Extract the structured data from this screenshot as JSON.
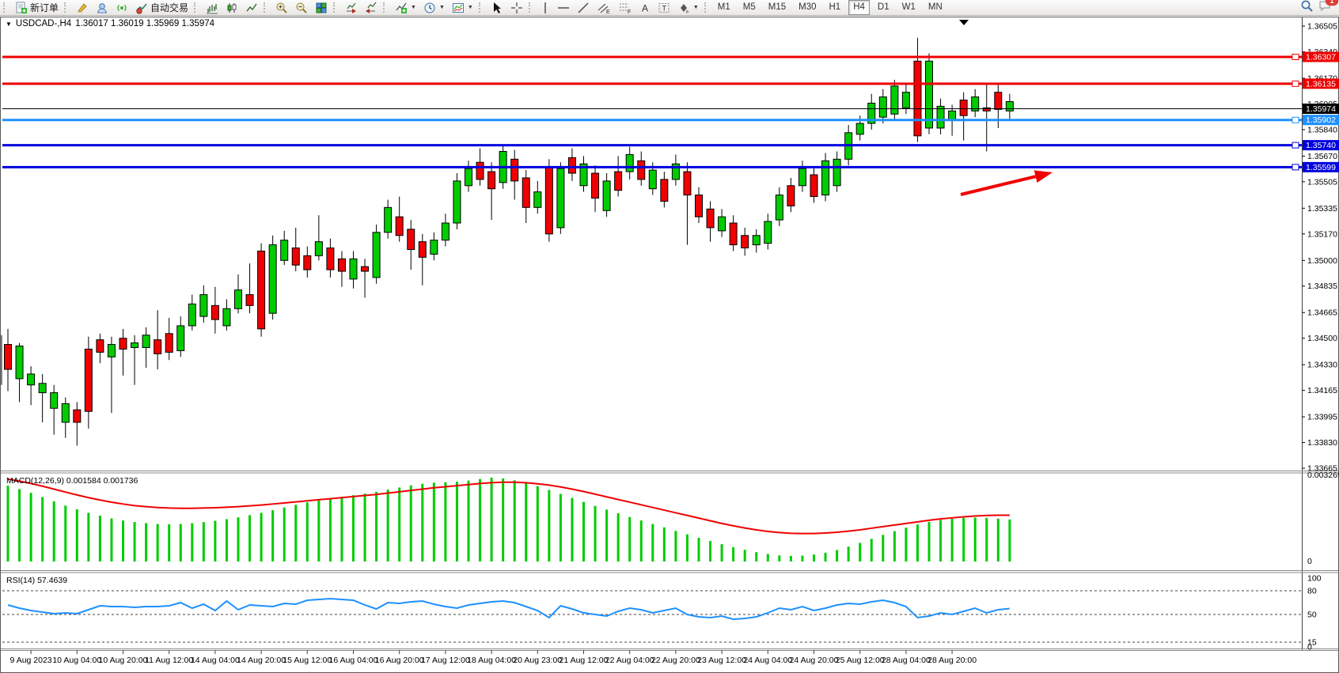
{
  "toolbar": {
    "new_order_label": "新订单",
    "autotrade_label": "自动交易",
    "timeframes": [
      "M1",
      "M5",
      "M15",
      "M30",
      "H1",
      "H4",
      "D1",
      "W1",
      "MN"
    ],
    "active_timeframe": "H4",
    "chat_badge": "1"
  },
  "window": {
    "title_symbol": "USDCAD-,H4",
    "title_ohlc": "1.36017 1.36019 1.35969 1.35974"
  },
  "chart_data": {
    "type": "candlestick",
    "symbol": "USDCAD",
    "period": "H4",
    "ohlc_display": {
      "open": "1.36017",
      "high": "1.36019",
      "low": "1.35969",
      "close": "1.35974"
    },
    "price_axis_ticks": [
      "1.36505",
      "1.36340",
      "1.36170",
      "1.36005",
      "1.35840",
      "1.35670",
      "1.35505",
      "1.35335",
      "1.35170",
      "1.35000",
      "1.34835",
      "1.34665",
      "1.34500",
      "1.34330",
      "1.34165",
      "1.33995",
      "1.33830",
      "1.33665"
    ],
    "price_levels": [
      {
        "label": "1.36307",
        "price": 1.36307,
        "color": "#ee0000",
        "notch": true,
        "width": 3
      },
      {
        "label": "1.36135",
        "price": 1.36135,
        "color": "#ee0000",
        "notch": true,
        "width": 3
      },
      {
        "label": "1.35974",
        "price": 1.35974,
        "color": "#000000",
        "notch": false,
        "width": 1
      },
      {
        "label": "1.35902",
        "price": 1.35902,
        "color": "#1e90ff",
        "notch": true,
        "width": 3
      },
      {
        "label": "1.35740",
        "price": 1.3574,
        "color": "#0000dd",
        "notch": true,
        "width": 3
      },
      {
        "label": "1.35599",
        "price": 1.35599,
        "color": "#0000dd",
        "notch": true,
        "width": 3
      }
    ],
    "date_labels": [
      "9 Aug 2023",
      "10 Aug 04:00",
      "10 Aug 20:00",
      "11 Aug 12:00",
      "14 Aug 04:00",
      "14 Aug 20:00",
      "15 Aug 12:00",
      "16 Aug 04:00",
      "16 Aug 20:00",
      "17 Aug 12:00",
      "18 Aug 04:00",
      "20 Aug 23:00",
      "21 Aug 12:00",
      "22 Aug 04:00",
      "22 Aug 20:00",
      "23 Aug 12:00",
      "24 Aug 04:00",
      "24 Aug 20:00",
      "25 Aug 12:00",
      "28 Aug 04:00",
      "28 Aug 20:00"
    ],
    "first_label_candle": 2,
    "label_every_candles": 4,
    "up_color": "#00cc00",
    "down_color": "#f00000",
    "candles": [
      [
        0,
        1.3446,
        1.343,
        1.3456,
        1.3416
      ],
      [
        1,
        1.3445,
        1.3424,
        1.3447,
        1.3409
      ],
      [
        1,
        1.3427,
        1.342,
        1.3432,
        1.3407
      ],
      [
        1,
        1.3421,
        1.3415,
        1.3427,
        1.3396
      ],
      [
        1,
        1.3415,
        1.3405,
        1.342,
        1.3388
      ],
      [
        1,
        1.3408,
        1.3396,
        1.3412,
        1.3386
      ],
      [
        0,
        1.3404,
        1.3396,
        1.3409,
        1.3381
      ],
      [
        0,
        1.3443,
        1.3403,
        1.3451,
        1.3392
      ],
      [
        0,
        1.3449,
        1.3441,
        1.3453,
        1.3434
      ],
      [
        1,
        1.3446,
        1.3438,
        1.3451,
        1.3402
      ],
      [
        0,
        1.345,
        1.3443,
        1.3456,
        1.3426
      ],
      [
        1,
        1.3447,
        1.3444,
        1.3452,
        1.342
      ],
      [
        1,
        1.3452,
        1.3444,
        1.3457,
        1.3431
      ],
      [
        0,
        1.3449,
        1.344,
        1.3468,
        1.343
      ],
      [
        0,
        1.3453,
        1.3441,
        1.3463,
        1.3436
      ],
      [
        1,
        1.3458,
        1.3442,
        1.3464,
        1.3438
      ],
      [
        1,
        1.3472,
        1.3458,
        1.3478,
        1.3455
      ],
      [
        1,
        1.3478,
        1.3464,
        1.3484,
        1.346
      ],
      [
        0,
        1.3471,
        1.3462,
        1.3483,
        1.3453
      ],
      [
        1,
        1.3469,
        1.3458,
        1.3475,
        1.3455
      ],
      [
        1,
        1.3481,
        1.3469,
        1.3491,
        1.3466
      ],
      [
        0,
        1.3478,
        1.3471,
        1.3498,
        1.3466
      ],
      [
        0,
        1.3506,
        1.3456,
        1.3511,
        1.3451
      ],
      [
        1,
        1.351,
        1.3466,
        1.3516,
        1.3462
      ],
      [
        1,
        1.3513,
        1.35,
        1.3519,
        1.3497
      ],
      [
        0,
        1.3508,
        1.3497,
        1.3521,
        1.3493
      ],
      [
        0,
        1.3503,
        1.3494,
        1.3509,
        1.3489
      ],
      [
        1,
        1.3512,
        1.3503,
        1.3529,
        1.35
      ],
      [
        0,
        1.3508,
        1.3494,
        1.3514,
        1.3489
      ],
      [
        0,
        1.3501,
        1.3493,
        1.3506,
        1.3483
      ],
      [
        1,
        1.3501,
        1.3488,
        1.3506,
        1.3482
      ],
      [
        0,
        1.3496,
        1.3493,
        1.3501,
        1.3476
      ],
      [
        1,
        1.3518,
        1.3489,
        1.3523,
        1.3485
      ],
      [
        1,
        1.3534,
        1.3518,
        1.3539,
        1.3514
      ],
      [
        0,
        1.3528,
        1.3516,
        1.3541,
        1.3512
      ],
      [
        0,
        1.352,
        1.3507,
        1.3526,
        1.3494
      ],
      [
        0,
        1.3512,
        1.3502,
        1.3517,
        1.3484
      ],
      [
        1,
        1.3513,
        1.3504,
        1.3518,
        1.35
      ],
      [
        1,
        1.3524,
        1.3513,
        1.353,
        1.3509
      ],
      [
        1,
        1.3551,
        1.3524,
        1.3556,
        1.352
      ],
      [
        1,
        1.3559,
        1.3548,
        1.3564,
        1.3544
      ],
      [
        0,
        1.3563,
        1.3552,
        1.3572,
        1.3548
      ],
      [
        0,
        1.3557,
        1.3546,
        1.3563,
        1.3526
      ],
      [
        1,
        1.357,
        1.355,
        1.3574,
        1.3546
      ],
      [
        0,
        1.3565,
        1.3551,
        1.3571,
        1.3539
      ],
      [
        0,
        1.3553,
        1.3534,
        1.3558,
        1.3524
      ],
      [
        1,
        1.3544,
        1.3534,
        1.3551,
        1.353
      ],
      [
        0,
        1.356,
        1.3517,
        1.3565,
        1.3512
      ],
      [
        1,
        1.3559,
        1.3521,
        1.3563,
        1.3517
      ],
      [
        0,
        1.3566,
        1.3556,
        1.3572,
        1.3551
      ],
      [
        1,
        1.3562,
        1.3548,
        1.3567,
        1.3544
      ],
      [
        0,
        1.3556,
        1.354,
        1.3561,
        1.3531
      ],
      [
        1,
        1.3551,
        1.3532,
        1.3556,
        1.3528
      ],
      [
        0,
        1.3557,
        1.3545,
        1.3567,
        1.3541
      ],
      [
        1,
        1.3568,
        1.3557,
        1.3573,
        1.3552
      ],
      [
        0,
        1.3564,
        1.3552,
        1.357,
        1.3548
      ],
      [
        1,
        1.3558,
        1.3546,
        1.3563,
        1.3542
      ],
      [
        0,
        1.3552,
        1.3538,
        1.3557,
        1.3534
      ],
      [
        1,
        1.3562,
        1.3552,
        1.3568,
        1.3548
      ],
      [
        0,
        1.3557,
        1.3542,
        1.3563,
        1.351
      ],
      [
        0,
        1.3542,
        1.3528,
        1.3547,
        1.3524
      ],
      [
        0,
        1.3533,
        1.3521,
        1.3538,
        1.3512
      ],
      [
        1,
        1.3528,
        1.3519,
        1.3533,
        1.3515
      ],
      [
        0,
        1.3524,
        1.351,
        1.3529,
        1.3506
      ],
      [
        0,
        1.3516,
        1.3508,
        1.3521,
        1.3503
      ],
      [
        1,
        1.3516,
        1.351,
        1.352,
        1.3505
      ],
      [
        1,
        1.3525,
        1.3511,
        1.353,
        1.3507
      ],
      [
        1,
        1.3542,
        1.3526,
        1.3547,
        1.3522
      ],
      [
        0,
        1.3548,
        1.3535,
        1.3553,
        1.3531
      ],
      [
        1,
        1.3559,
        1.3548,
        1.3564,
        1.3544
      ],
      [
        0,
        1.3555,
        1.3541,
        1.356,
        1.3537
      ],
      [
        1,
        1.3564,
        1.3542,
        1.3569,
        1.3538
      ],
      [
        1,
        1.3565,
        1.3548,
        1.357,
        1.3544
      ],
      [
        1,
        1.3582,
        1.3565,
        1.3587,
        1.3561
      ],
      [
        1,
        1.3588,
        1.3581,
        1.3593,
        1.3577
      ],
      [
        1,
        1.3601,
        1.3588,
        1.3607,
        1.3584
      ],
      [
        1,
        1.3605,
        1.3592,
        1.361,
        1.3588
      ],
      [
        1,
        1.3612,
        1.3594,
        1.3616,
        1.359
      ],
      [
        1,
        1.3608,
        1.3598,
        1.3613,
        1.3594
      ],
      [
        0,
        1.3628,
        1.358,
        1.3643,
        1.3576
      ],
      [
        1,
        1.3628,
        1.3585,
        1.3633,
        1.3581
      ],
      [
        1,
        1.3599,
        1.3585,
        1.3604,
        1.3581
      ],
      [
        1,
        1.3596,
        1.359,
        1.36,
        1.358
      ],
      [
        0,
        1.3603,
        1.3593,
        1.3608,
        1.3577
      ],
      [
        1,
        1.3605,
        1.3596,
        1.361,
        1.3592
      ],
      [
        0,
        1.3598,
        1.3596,
        1.3613,
        1.357
      ],
      [
        0,
        1.3608,
        1.3597,
        1.3613,
        1.3585
      ],
      [
        1,
        1.3602,
        1.3596,
        1.3607,
        1.359
      ]
    ],
    "macd": {
      "name_label": "MACD(12,26,9) 0.001584 0.001736",
      "scale_max_label": "0.003269",
      "scale_min_label": "0",
      "histogram_color": "#00cc00",
      "signal_color": "#f00000",
      "values": [
        0.00285,
        0.00272,
        0.00258,
        0.00242,
        0.00226,
        0.0021,
        0.00196,
        0.00183,
        0.00172,
        0.00162,
        0.00154,
        0.00148,
        0.00144,
        0.00141,
        0.0014,
        0.00141,
        0.00144,
        0.00148,
        0.00153,
        0.00159,
        0.00166,
        0.00174,
        0.00183,
        0.00193,
        0.00203,
        0.00213,
        0.00222,
        0.0023,
        0.00237,
        0.00243,
        0.00249,
        0.00255,
        0.00262,
        0.0027,
        0.00278,
        0.00286,
        0.00292,
        0.00296,
        0.00298,
        0.003,
        0.00304,
        0.0031,
        0.00315,
        0.00312,
        0.00305,
        0.00295,
        0.00283,
        0.00269,
        0.00254,
        0.00239,
        0.00224,
        0.00209,
        0.00195,
        0.00181,
        0.00167,
        0.00154,
        0.00141,
        0.00128,
        0.00115,
        0.00102,
        0.00089,
        0.00077,
        0.00065,
        0.00054,
        0.00044,
        0.00035,
        0.00028,
        0.00023,
        0.00021,
        0.00022,
        0.00026,
        0.00033,
        0.00043,
        0.00056,
        0.0007,
        0.00085,
        0.001,
        0.00114,
        0.00127,
        0.00139,
        0.00149,
        0.00156,
        0.00161,
        0.00164,
        0.00165,
        0.00164,
        0.00161,
        0.00158
      ],
      "signal": [
        0.0031,
        0.00302,
        0.00293,
        0.00283,
        0.00272,
        0.00261,
        0.0025,
        0.0024,
        0.00231,
        0.00223,
        0.00216,
        0.0021,
        0.00206,
        0.00203,
        0.00201,
        0.002,
        0.002,
        0.00201,
        0.00202,
        0.00204,
        0.00206,
        0.00209,
        0.00212,
        0.00216,
        0.0022,
        0.00224,
        0.00228,
        0.00232,
        0.00236,
        0.0024,
        0.00244,
        0.00248,
        0.00252,
        0.00257,
        0.00262,
        0.00267,
        0.00272,
        0.00277,
        0.00281,
        0.00285,
        0.00289,
        0.00293,
        0.00296,
        0.00298,
        0.00298,
        0.00296,
        0.00292,
        0.00287,
        0.0028,
        0.00272,
        0.00263,
        0.00253,
        0.00243,
        0.00233,
        0.00223,
        0.00213,
        0.00203,
        0.00193,
        0.00183,
        0.00173,
        0.00163,
        0.00153,
        0.00143,
        0.00134,
        0.00126,
        0.00119,
        0.00113,
        0.00109,
        0.00106,
        0.00105,
        0.00105,
        0.00107,
        0.0011,
        0.00114,
        0.00119,
        0.00125,
        0.00131,
        0.00137,
        0.00143,
        0.00149,
        0.00155,
        0.0016,
        0.00164,
        0.00168,
        0.00171,
        0.00173,
        0.00174,
        0.00174
      ]
    },
    "rsi": {
      "name_label": "RSI(14) 57.4639",
      "line_color": "#1e90ff",
      "levels": [
        80,
        50,
        15
      ],
      "axis_labels": [
        "100",
        "80",
        "50",
        "15",
        "0"
      ],
      "values": [
        62,
        58,
        55,
        53,
        51,
        52,
        51,
        56,
        61,
        60,
        60,
        59,
        60,
        60,
        61,
        65,
        58,
        63,
        55,
        67,
        56,
        62,
        61,
        60,
        64,
        63,
        68,
        69,
        70,
        69,
        68,
        62,
        57,
        65,
        64,
        66,
        67,
        63,
        60,
        58,
        62,
        64,
        66,
        67,
        65,
        60,
        55,
        46,
        61,
        57,
        52,
        50,
        48,
        54,
        58,
        56,
        52,
        55,
        58,
        50,
        47,
        46,
        48,
        44,
        45,
        47,
        52,
        58,
        56,
        60,
        55,
        58,
        62,
        64,
        63,
        66,
        68,
        65,
        60,
        46,
        48,
        52,
        50,
        54,
        58,
        52,
        56,
        57.46
      ]
    },
    "arrow_annotation": {
      "from": [
        1214,
        225
      ],
      "to": [
        1330,
        197
      ],
      "color": "#f00000"
    }
  }
}
